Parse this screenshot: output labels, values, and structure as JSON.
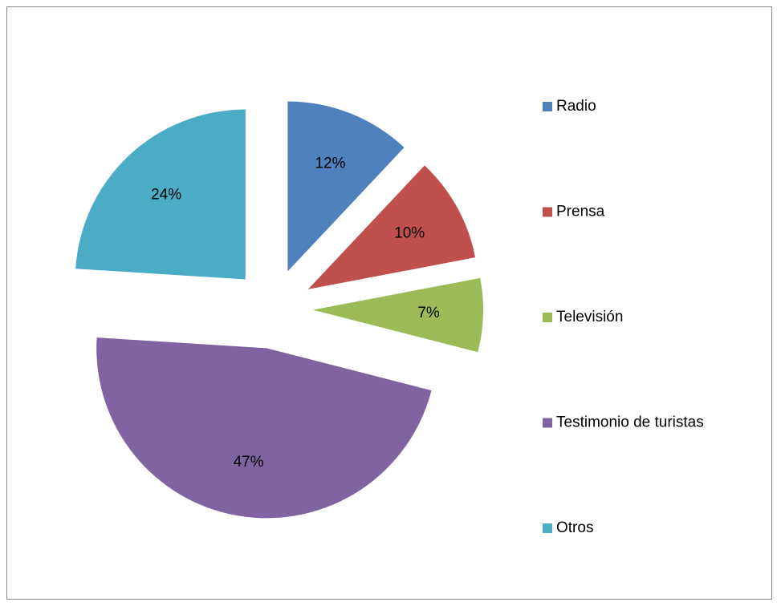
{
  "chart_data": {
    "type": "pie",
    "categories": [
      "Radio",
      "Prensa",
      "Televisión",
      "Testimonio de turistas",
      "Otros"
    ],
    "values": [
      12,
      10,
      7,
      47,
      24
    ],
    "value_labels": [
      "12%",
      "10%",
      "7%",
      "47%",
      "24%"
    ],
    "colors": [
      "#4f81bd",
      "#c0504d",
      "#9bbb59",
      "#8064a2",
      "#4bacc6"
    ],
    "legend": "right",
    "exploded": true
  }
}
